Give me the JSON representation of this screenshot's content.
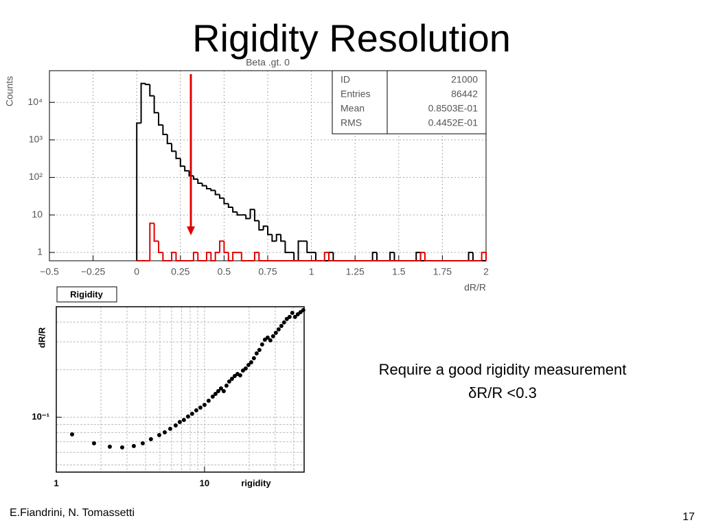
{
  "title": "Rigidity Resolution",
  "notes": [
    "Require a good rigidity measurement",
    "δR/R <0.3"
  ],
  "footer": {
    "authors": "E.Fiandrini, N. Tomassetti",
    "page": "17"
  },
  "chart_data": [
    {
      "type": "histogram",
      "title": "Beta .gt. 0",
      "ylabel": "Counts",
      "xlabel": "dR/R",
      "ylog": true,
      "xlog": false,
      "grid": true,
      "xlim": [
        -0.5,
        2
      ],
      "ylim": [
        0.6,
        70000
      ],
      "xticks": [
        {
          "value": -0.5,
          "label": "−0.5"
        },
        {
          "value": -0.25,
          "label": "−0.25"
        },
        0,
        0.25,
        0.5,
        0.75,
        1,
        1.25,
        1.5,
        1.75,
        2
      ],
      "yticks": [
        1,
        10,
        {
          "value": 100,
          "label": "10²"
        },
        {
          "value": 1000,
          "label": "10³"
        },
        {
          "value": 10000,
          "label": "10⁴"
        }
      ],
      "stats": [
        [
          "ID",
          "21000"
        ],
        [
          "Entries",
          "86442"
        ],
        [
          "Mean",
          "0.8503E-01"
        ],
        [
          "RMS",
          "0.4452E-01"
        ]
      ],
      "bins": [
        0,
        0.025,
        0.05,
        0.075,
        0.1,
        0.125,
        0.15,
        0.175,
        0.2,
        0.225,
        0.25,
        0.275,
        0.3,
        0.325,
        0.35,
        0.375,
        0.4,
        0.425,
        0.45,
        0.475,
        0.5,
        0.525,
        0.55,
        0.575,
        0.6,
        0.625,
        0.65,
        0.675,
        0.7,
        0.725,
        0.75,
        0.775,
        0.8,
        0.825,
        0.85,
        0.875,
        0.9,
        0.925,
        0.95,
        0.975,
        1,
        1.025,
        1.05,
        1.075,
        1.1,
        1.125,
        1.15,
        1.175,
        1.2,
        1.225,
        1.25,
        1.275,
        1.3,
        1.325,
        1.35,
        1.375,
        1.4,
        1.425,
        1.45,
        1.475,
        1.5,
        1.525,
        1.55,
        1.575,
        1.6,
        1.625,
        1.65,
        1.675,
        1.7,
        1.725,
        1.75,
        1.775,
        1.8,
        1.825,
        1.85,
        1.875,
        1.9,
        1.925,
        1.95,
        1.975,
        2
      ],
      "series": [
        {
          "color": "#000000",
          "values": [
            2800,
            32000,
            30000,
            15000,
            5300,
            2500,
            1400,
            800,
            500,
            320,
            200,
            150,
            110,
            90,
            70,
            60,
            50,
            45,
            35,
            28,
            20,
            16,
            12,
            10,
            10,
            8,
            14,
            7,
            4,
            5,
            3,
            2,
            3,
            2,
            1,
            1,
            0,
            2,
            2,
            1,
            1,
            0,
            0,
            0,
            1,
            0,
            0,
            0,
            0,
            0,
            0,
            0,
            0,
            0,
            1,
            0,
            0,
            0,
            1,
            0,
            0,
            0,
            0,
            0,
            1,
            0,
            0,
            0,
            0,
            0,
            0,
            0,
            0,
            0,
            0,
            0,
            1,
            0,
            0,
            0
          ]
        },
        {
          "color": "#e00000",
          "values": [
            0,
            0,
            0,
            6,
            2,
            1,
            0,
            0,
            1,
            0,
            0,
            0,
            0,
            1,
            0,
            0,
            1,
            0,
            1,
            2,
            1,
            0,
            1,
            1,
            0,
            0,
            0,
            1,
            0,
            0,
            0,
            0,
            0,
            0,
            0,
            0,
            0,
            0,
            0,
            0,
            0,
            0,
            0,
            1,
            0,
            0,
            0,
            0,
            0,
            0,
            0,
            0,
            0,
            0,
            0,
            0,
            0,
            0,
            0,
            0,
            0,
            0,
            0,
            0,
            0,
            1,
            0,
            0,
            0,
            0,
            0,
            0,
            0,
            0,
            0,
            0,
            0,
            0,
            0,
            1
          ]
        }
      ]
    },
    {
      "type": "scatter",
      "title": "Rigidity",
      "ylabel": "dR/R",
      "xlabel": "rigidity",
      "xlog": true,
      "ylog": true,
      "grid": true,
      "color": "#000000",
      "xlim": [
        1,
        47
      ],
      "ylim": [
        0.045,
        0.5
      ],
      "xticks": [
        1,
        10
      ],
      "yticks": [
        {
          "value": 0.1,
          "label": "10⁻¹"
        }
      ],
      "xminorticks": [
        2,
        3,
        4,
        5,
        6,
        7,
        8,
        9,
        20,
        30,
        40
      ],
      "yminorticks": [
        0.05,
        0.06,
        0.07,
        0.08,
        0.09,
        0.2,
        0.3,
        0.4
      ],
      "x": [
        1.278,
        1.797,
        2.297,
        2.783,
        3.335,
        3.83,
        4.35,
        4.95,
        5.39,
        5.87,
        6.39,
        6.81,
        7.26,
        7.74,
        8.25,
        8.8,
        9.38,
        10,
        10.66,
        11.36,
        11.86,
        12.38,
        12.92,
        13.48,
        14.07,
        14.68,
        15.32,
        15.99,
        16.69,
        17.41,
        18.17,
        18.96,
        19.79,
        20.65,
        21.54,
        22.48,
        23.46,
        24.48,
        25.55,
        26.66,
        27.82,
        29.03,
        30.29,
        31.62,
        33.0,
        34.4,
        35.9,
        37.5,
        39.1,
        40.8,
        42.6,
        44.5,
        46.4
      ],
      "values": [
        0.078,
        0.0685,
        0.0651,
        0.0645,
        0.0658,
        0.0685,
        0.0727,
        0.0772,
        0.0803,
        0.0845,
        0.0888,
        0.0933,
        0.0962,
        0.1011,
        0.1052,
        0.1106,
        0.1151,
        0.1198,
        0.1272,
        0.1351,
        0.1406,
        0.1463,
        0.1523,
        0.1463,
        0.1585,
        0.1683,
        0.1752,
        0.1823,
        0.1879,
        0.1841,
        0.1975,
        0.2035,
        0.214,
        0.2227,
        0.2364,
        0.2535,
        0.2665,
        0.2887,
        0.3097,
        0.3191,
        0.3066,
        0.3255,
        0.3422,
        0.3597,
        0.3782,
        0.3976,
        0.418,
        0.4307,
        0.4572,
        0.4307,
        0.4482,
        0.4619,
        0.476
      ]
    }
  ]
}
